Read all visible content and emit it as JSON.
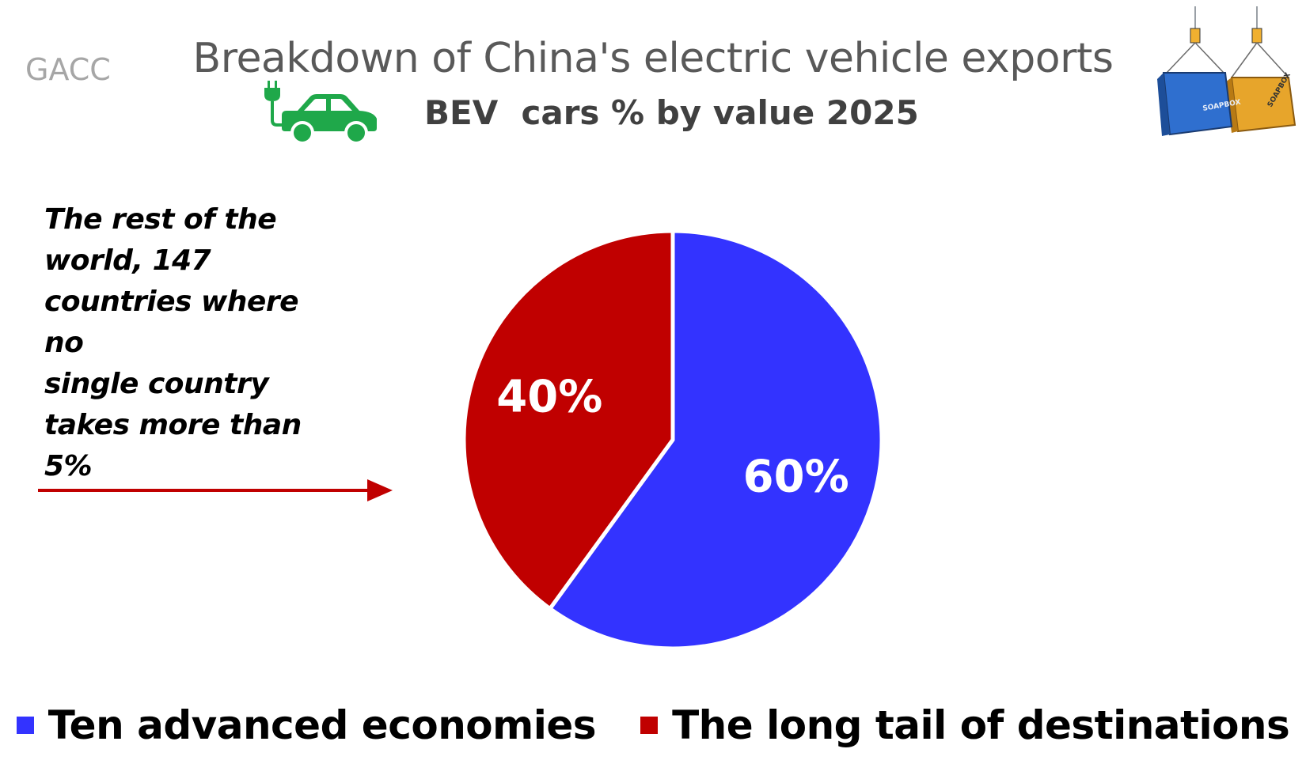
{
  "header": {
    "source": "GACC",
    "title": "Breakdown of China's electric vehicle exports",
    "subtitle": "BEV  cars % by value 2025"
  },
  "annotation": {
    "lines": [
      "The rest of the",
      "world, 147",
      "countries where no",
      "single country",
      "takes more than",
      "5%"
    ]
  },
  "icons": {
    "ev": "ev-car-plug-icon",
    "logo": "soapbox-containers-logo",
    "logo_text": "SOAPBOX"
  },
  "colors": {
    "advanced": "#3333ff",
    "tail": "#c00000",
    "ev_icon": "#1fa84a",
    "arrow": "#c00000"
  },
  "chart_data": {
    "type": "pie",
    "title": "Breakdown of China's electric vehicle exports",
    "subtitle": "BEV  cars % by value 2025",
    "legend_position": "bottom",
    "series": [
      {
        "name": "Ten advanced economies",
        "value": 60,
        "label": "60%",
        "color": "#3333ff"
      },
      {
        "name": "The long tail of destinations",
        "value": 40,
        "label": "40%",
        "color": "#c00000"
      }
    ]
  }
}
